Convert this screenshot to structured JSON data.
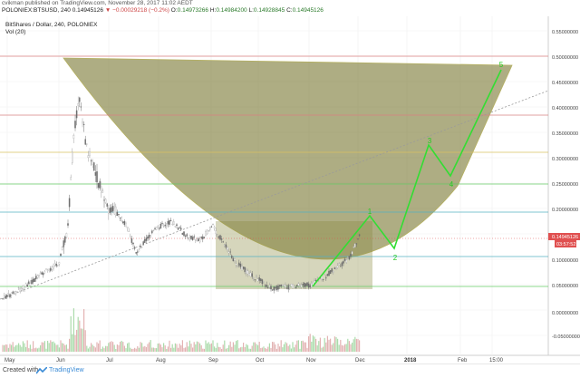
{
  "header": {
    "line1": "cvikman published on TradingView.com, November 28, 2017 11:02 AEDT",
    "symbol": "POLONIEX:BTSUSD, 240",
    "price": "0.14945126",
    "change": "−0.00029218 (−0.2%)",
    "open_label": "O:",
    "open": "0.14973266",
    "high_label": "H:",
    "high": "0.14984200",
    "low_label": "L:",
    "low": "0.14928845",
    "close_label": "C:",
    "close": "0.14945126"
  },
  "legend": {
    "title": "BitShares / Dollar, 240, POLONIEX",
    "indicator": "Vol (20)"
  },
  "price_axis": {
    "labels": [
      "0.55000000",
      "0.50000000",
      "0.45000000",
      "0.40000000",
      "0.35000000",
      "0.30000000",
      "0.25000000",
      "0.20000000",
      "0.15000000",
      "0.10000000",
      "0.05000000",
      "0.00000000",
      "-0.05000000"
    ],
    "current_price": "0.14945126",
    "countdown": "03:57:52"
  },
  "time_axis": {
    "labels": [
      "May",
      "Jun",
      "Jul",
      "Aug",
      "Sep",
      "Oct",
      "Nov",
      "Dec",
      "2018",
      "Feb",
      "15:00"
    ]
  },
  "wave_labels": [
    "1",
    "2",
    "3",
    "4",
    "5"
  ],
  "colors": {
    "candle_up": "#a0a0a0",
    "candle_down": "#6e6e6e",
    "wave_line": "#33dd33",
    "wave_label": "#22cc22",
    "cup_fill": "#6b6a1e",
    "cup_stroke": "#b5b060",
    "level_red": "#d98080",
    "level_green": "#66cc66",
    "level_teal": "#55b0c0",
    "price_badge": "#e05050"
  },
  "footer": {
    "created_with": "Created with",
    "brand": "TradingView"
  }
}
